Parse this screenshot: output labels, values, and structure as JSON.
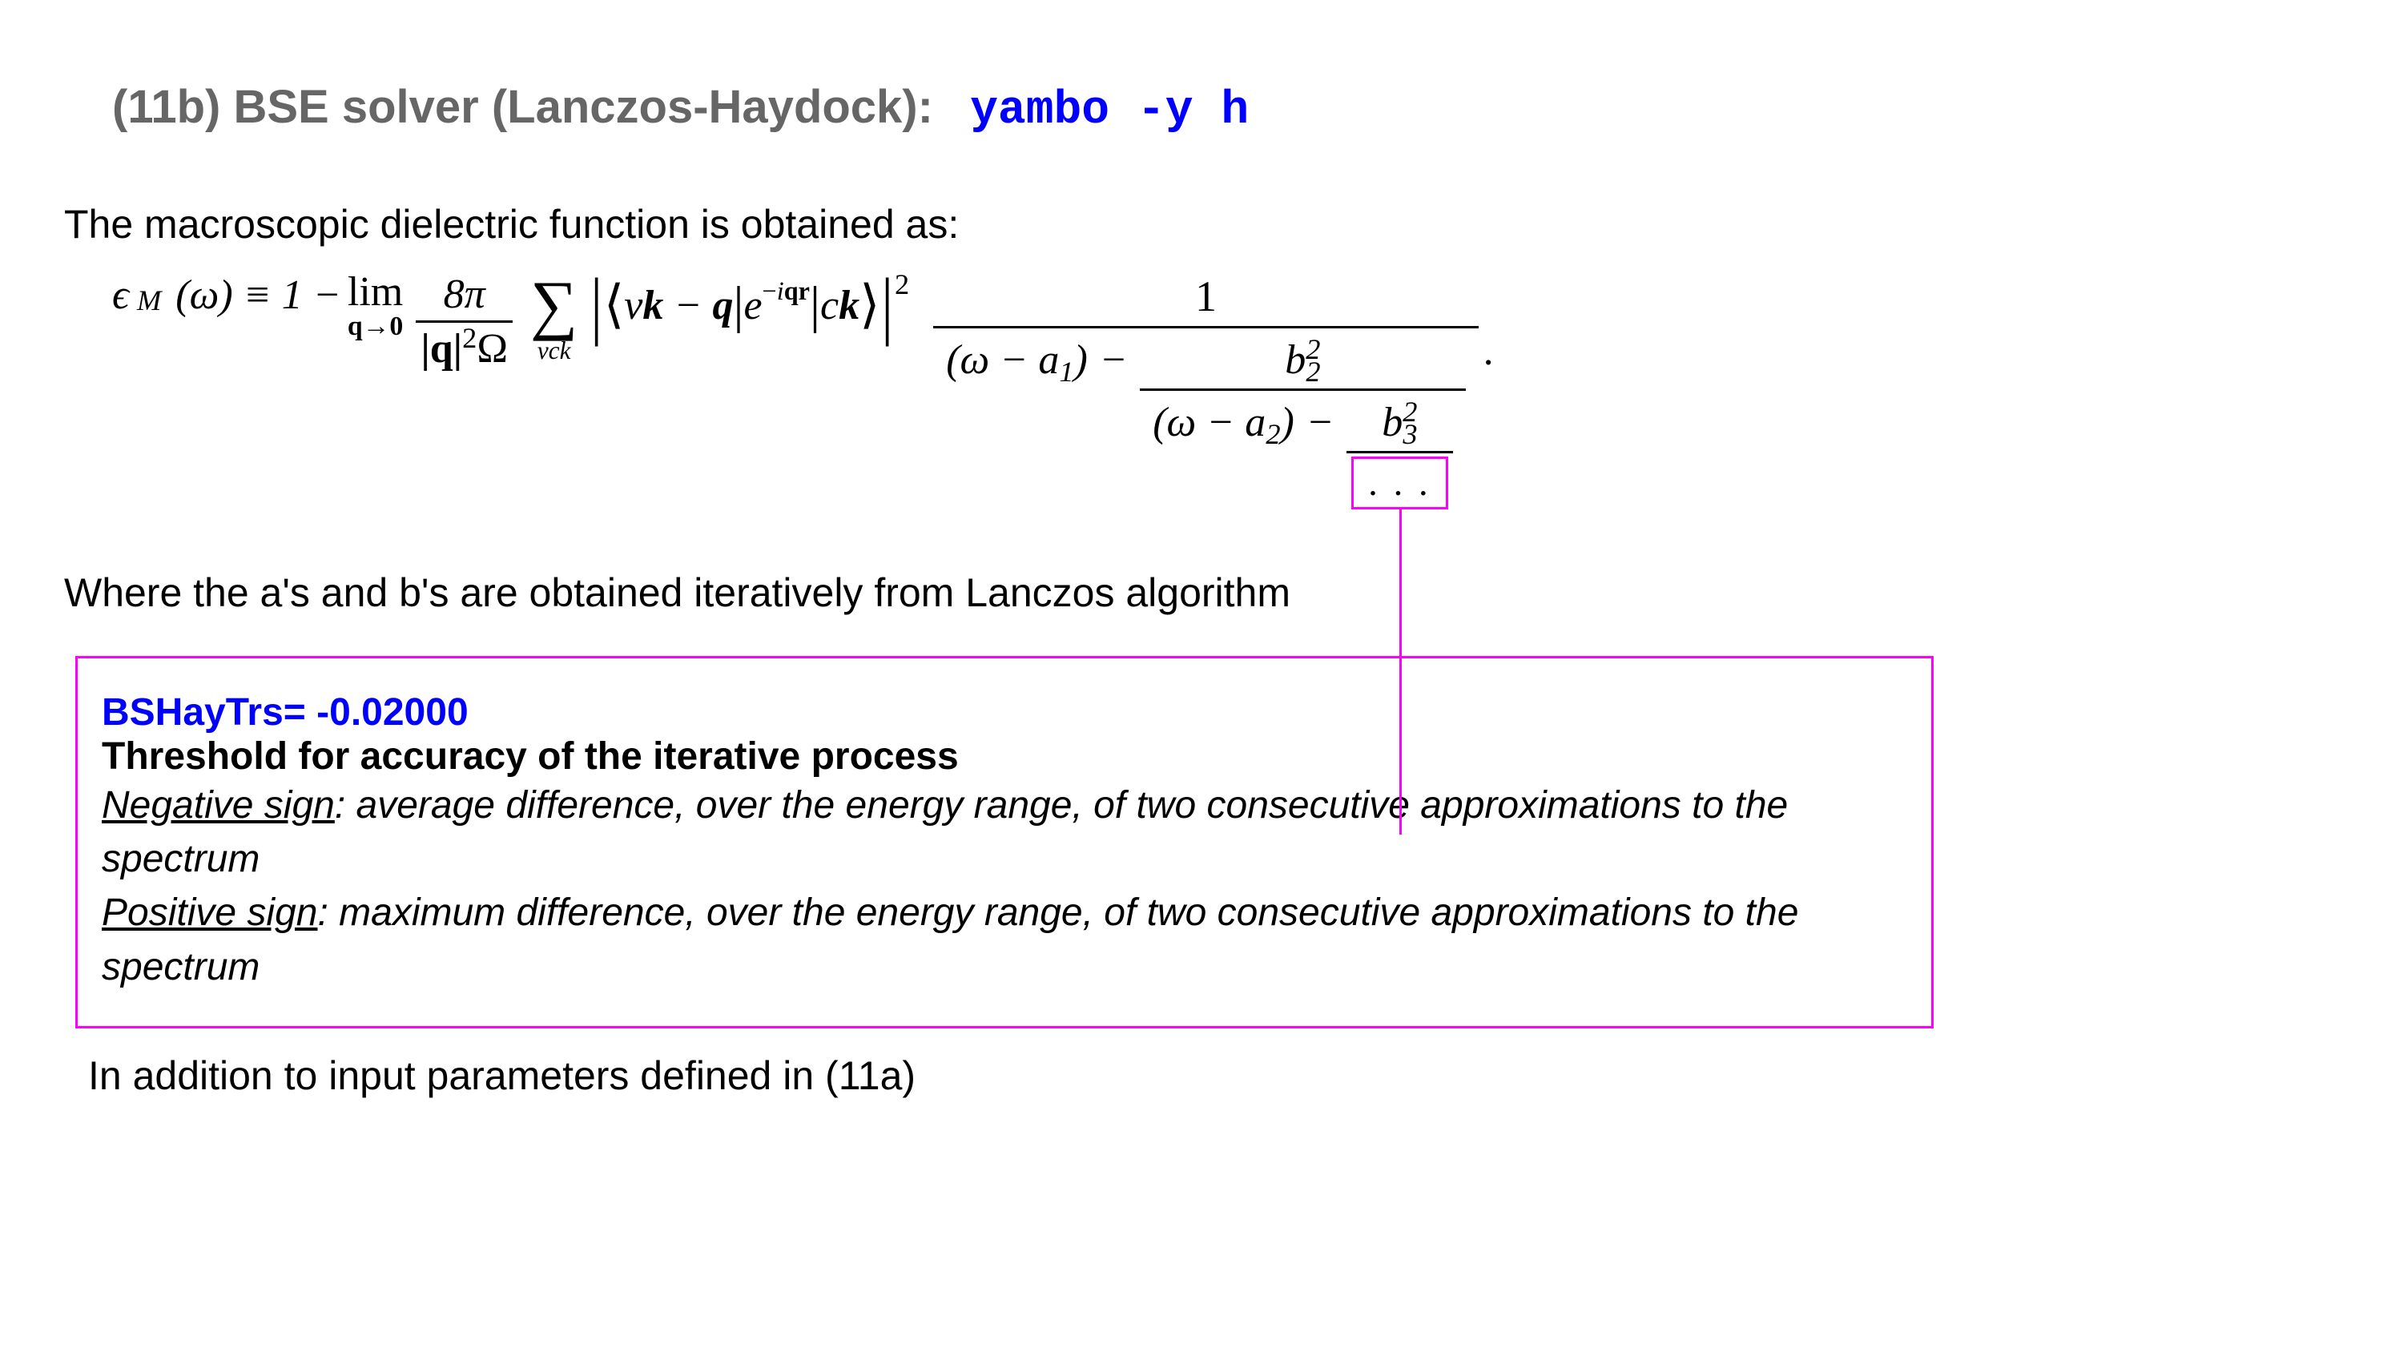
{
  "heading": {
    "label": "(11b)  BSE solver (Lanczos-Haydock):",
    "cmd": "yambo -y h"
  },
  "intro": "The macroscopic dielectric function is obtained as:",
  "equation": {
    "eps": "ϵ",
    "epsSub": "M",
    "omega": "(ω) ≡ 1 −",
    "lim": "lim",
    "limUnder": "q→0",
    "fracNum": "8π",
    "fracDenQ": "|q|",
    "fracDenQexp": "2",
    "fracDenOmega": "Ω",
    "sumSym": "∑",
    "sumUnder": "vck",
    "bra": "⟨",
    "vklabel": "vk − q",
    "mid": "|",
    "e": "e",
    "eexp": "−iqr",
    "cklabel": "ck",
    "ket": "⟩",
    "sqExp": "2",
    "cfNum": "1",
    "wa1": "(ω − a",
    "one": "1",
    "close": ")",
    "minus": " − ",
    "b": "b",
    "two": "2",
    "wa2": "(ω − a",
    "three": "3",
    "dots": ". . .",
    "period": "."
  },
  "where": "Where the a's and b's are obtained iteratively from Lanczos algorithm",
  "param": {
    "key": "BSHayTrs= -0.02000",
    "title": "Threshold for accuracy of the iterative process",
    "negLabel": "Negative sign",
    "negText": ": average difference, over the energy range, of two consecutive approximations to the spectrum",
    "posLabel": "Positive sign",
    "posText": ":  maximum difference, over the energy range, of two consecutive approximations to the spectrum"
  },
  "footer": "In addition to input parameters defined in (11a)",
  "colors": {
    "magenta": "#ff00ff",
    "blue": "#0000ff",
    "gray": "#666666"
  }
}
